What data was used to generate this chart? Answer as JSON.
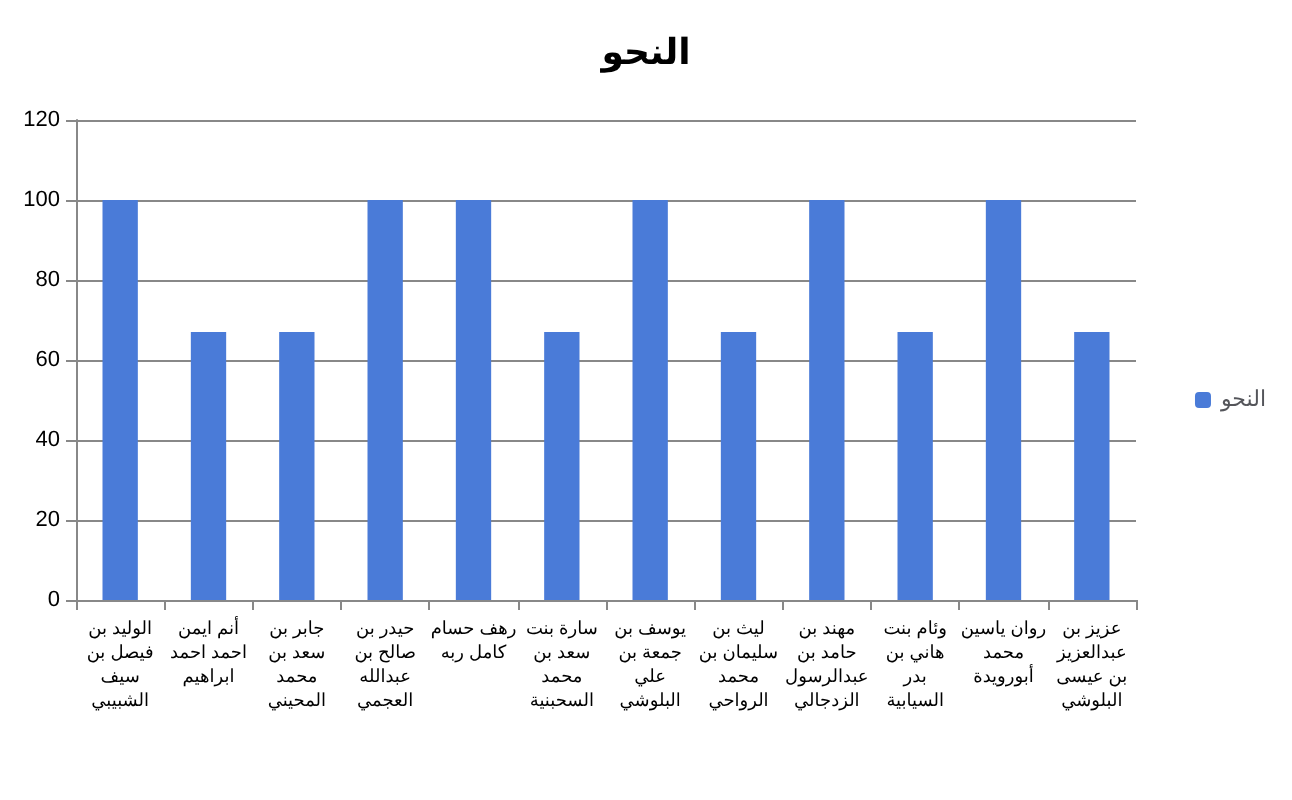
{
  "chart_data": {
    "type": "bar",
    "title": "النحو",
    "categories": [
      "الوليد بن فيصل بن سيف الشبيبي",
      "أنم ايمن احمد احمد ابراهيم",
      "جابر بن سعد بن محمد المحيني",
      "حيدر بن صالح بن عبدالله العجمي",
      "رهف حسام كامل ربه",
      "سارة بنت سعد بن محمد السحبنية",
      "يوسف بن جمعة بن علي البلوشي",
      "ليث بن سليمان بن محمد الرواحي",
      "مهند بن حامد بن عبدالرسول الزدجالي",
      "وئام بنت هاني بن بدر السيابية",
      "روان ياسين محمد أبورويدة",
      "عزيز بن عبدالعزيز بن عيسى البلوشي"
    ],
    "series": [
      {
        "name": "النحو",
        "color": "#4a7bd8",
        "values": [
          100,
          67,
          67,
          100,
          100,
          67,
          100,
          67,
          100,
          67,
          100,
          67
        ]
      }
    ],
    "ylim": [
      0,
      120
    ],
    "yticks": [
      0,
      20,
      40,
      60,
      80,
      100,
      120
    ],
    "grid": "y",
    "legend": "right"
  }
}
